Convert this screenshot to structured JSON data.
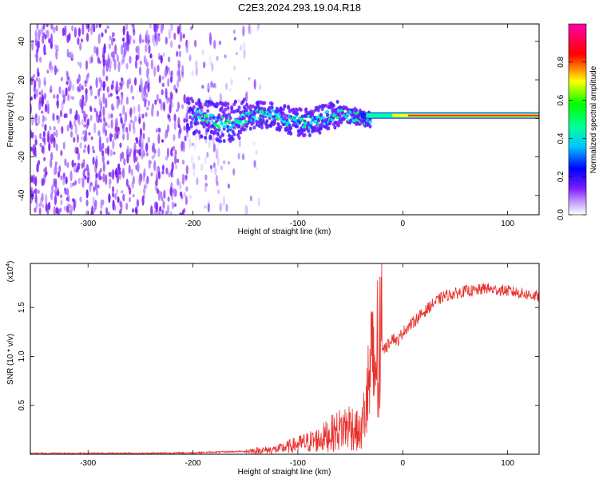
{
  "title": "C2E3.2024.293.19.04.R18",
  "chart_data": [
    {
      "type": "heatmap",
      "xlabel": "Height of straight line (km)",
      "ylabel": "Frequency (Hz)",
      "xlim": [
        -355,
        130
      ],
      "ylim": [
        -50,
        49
      ],
      "xticks": [
        -300,
        -200,
        -100,
        0,
        100
      ],
      "yticks": [
        -40,
        -20,
        0,
        20,
        40
      ],
      "colorbar": {
        "label": "Normalized spectral amplitude",
        "range": [
          0,
          1
        ],
        "ticks": [
          "0.0",
          "0.2",
          "0.4",
          "0.6",
          "0.8"
        ],
        "colormap": [
          "#ffffff",
          "#7a1cff",
          "#0000ff",
          "#00ffff",
          "#00ff00",
          "#ffff00",
          "#ff0000",
          "#ff00ff"
        ]
      },
      "grid": false
    },
    {
      "type": "line",
      "xlabel": "Height of straight line (km)",
      "ylabel": "SNR (10 * v/v)",
      "y_scale_label": "(x10",
      "y_scale_exp": "4",
      "y_scale_suffix": ")",
      "xlim": [
        -355,
        130
      ],
      "ylim": [
        0,
        1.95
      ],
      "xticks": [
        -300,
        -200,
        -100,
        0,
        100
      ],
      "yticks": [
        "0.5",
        "1.0",
        "1.5"
      ],
      "line_color": "#e8302c",
      "series": [
        {
          "x": [
            -355,
            -300,
            -250,
            -200,
            -150,
            -120,
            -100,
            -80,
            -60,
            -50,
            -45,
            -40,
            -35,
            -30,
            -25,
            -20,
            -15,
            -10,
            -5,
            0,
            10,
            20,
            30,
            40,
            50,
            60,
            70,
            80,
            85,
            90,
            100,
            110,
            120,
            130
          ],
          "y": [
            0.01,
            0.01,
            0.01,
            0.015,
            0.03,
            0.05,
            0.1,
            0.15,
            0.25,
            0.3,
            0.25,
            0.2,
            0.5,
            0.8,
            1.0,
            1.05,
            1.1,
            1.2,
            1.15,
            1.25,
            1.35,
            1.45,
            1.55,
            1.62,
            1.64,
            1.67,
            1.67,
            1.7,
            1.68,
            1.68,
            1.67,
            1.65,
            1.63,
            1.61
          ]
        }
      ]
    }
  ]
}
